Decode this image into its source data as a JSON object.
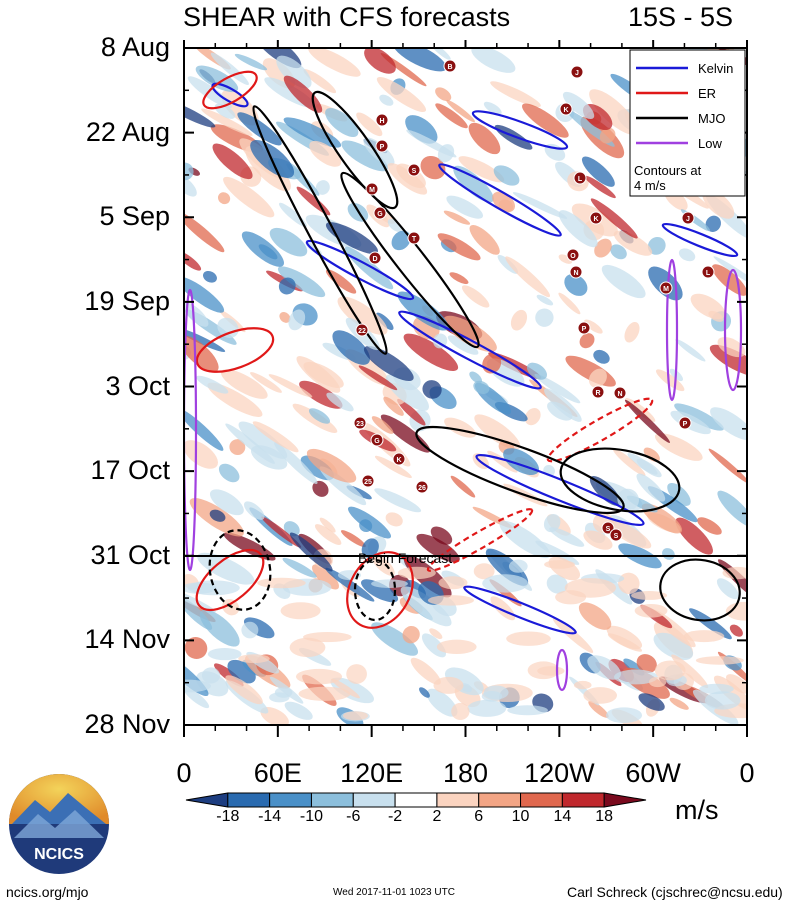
{
  "chart_data": {
    "type": "heatmap",
    "title": "SHEAR with CFS forecasts",
    "region": "15S - 5S",
    "y_ticks": [
      "8 Aug",
      "22 Aug",
      "5 Sep",
      "19 Sep",
      "3 Oct",
      "17 Oct",
      "31 Oct",
      "14 Nov",
      "28 Nov"
    ],
    "x_ticks": [
      "0",
      "60E",
      "120E",
      "180",
      "120W",
      "60W",
      "0"
    ],
    "colorbar_ticks": [
      "-18",
      "-14",
      "-10",
      "-6",
      "-2",
      "2",
      "6",
      "10",
      "14",
      "18"
    ],
    "colorbar_colors": [
      "#1d3d80",
      "#2a6bb0",
      "#4a90c8",
      "#8cbfdc",
      "#c8e0ee",
      "#ffffff",
      "#fbd4c0",
      "#f3a585",
      "#e0684e",
      "#c0282d",
      "#7a0a1e"
    ],
    "units": "m/s",
    "forecast_label": "Begin Forecast",
    "forecast_start": "31 Oct",
    "legend": {
      "entries": [
        {
          "label": "Kelvin",
          "color": "#1a1ad8"
        },
        {
          "label": "ER",
          "color": "#e01818"
        },
        {
          "label": "MJO",
          "color": "#000000"
        },
        {
          "label": "Low",
          "color": "#a040e0"
        }
      ],
      "note": "Contours at 4 m/s",
      "placement": "top-right"
    },
    "storm_markers": [
      "B",
      "J",
      "H",
      "K",
      "P",
      "S",
      "M",
      "L",
      "G",
      "T",
      "K",
      "J",
      "D",
      "O",
      "N",
      "L",
      "M",
      "P",
      "22",
      "R",
      "N",
      "23",
      "G",
      "K",
      "25",
      "26",
      "S",
      "S",
      "P"
    ]
  },
  "branding": {
    "logo_text": "NCICS"
  },
  "footer": {
    "left": "ncics.org/mjo",
    "center": "Wed 2017-11-01 1023 UTC",
    "right": "Carl Schreck (cjschrec@ncsu.edu)"
  }
}
